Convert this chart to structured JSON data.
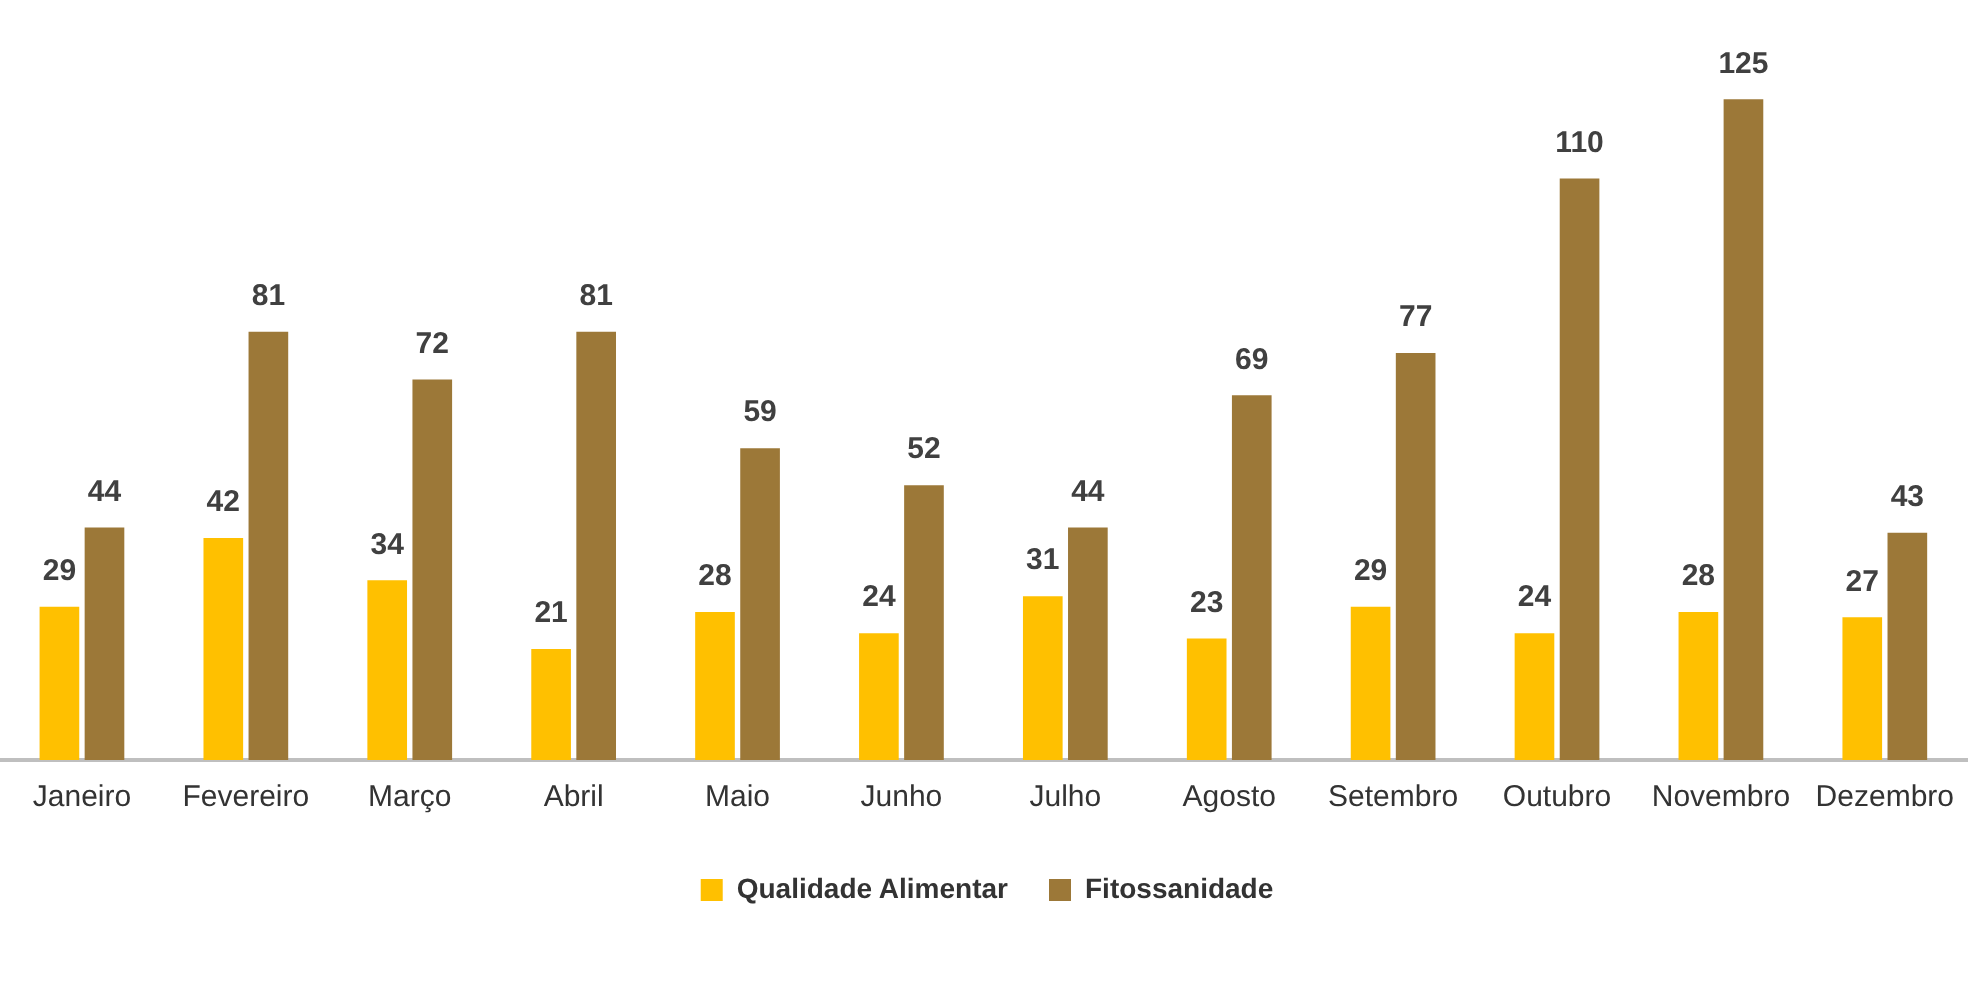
{
  "chart_data": {
    "type": "bar",
    "categories": [
      "Janeiro",
      "Fevereiro",
      "Março",
      "Abril",
      "Maio",
      "Junho",
      "Julho",
      "Agosto",
      "Setembro",
      "Outubro",
      "Novembro",
      "Dezembro"
    ],
    "series": [
      {
        "name": "Qualidade Alimentar",
        "color": "#ffc000",
        "values": [
          29,
          42,
          34,
          21,
          28,
          24,
          31,
          23,
          29,
          24,
          28,
          27
        ]
      },
      {
        "name": "Fitossanidade",
        "color": "#9c7838",
        "values": [
          44,
          81,
          72,
          81,
          59,
          52,
          44,
          69,
          77,
          110,
          125,
          43
        ]
      }
    ],
    "data_labels": true,
    "legend": "bottom",
    "grid": false
  }
}
